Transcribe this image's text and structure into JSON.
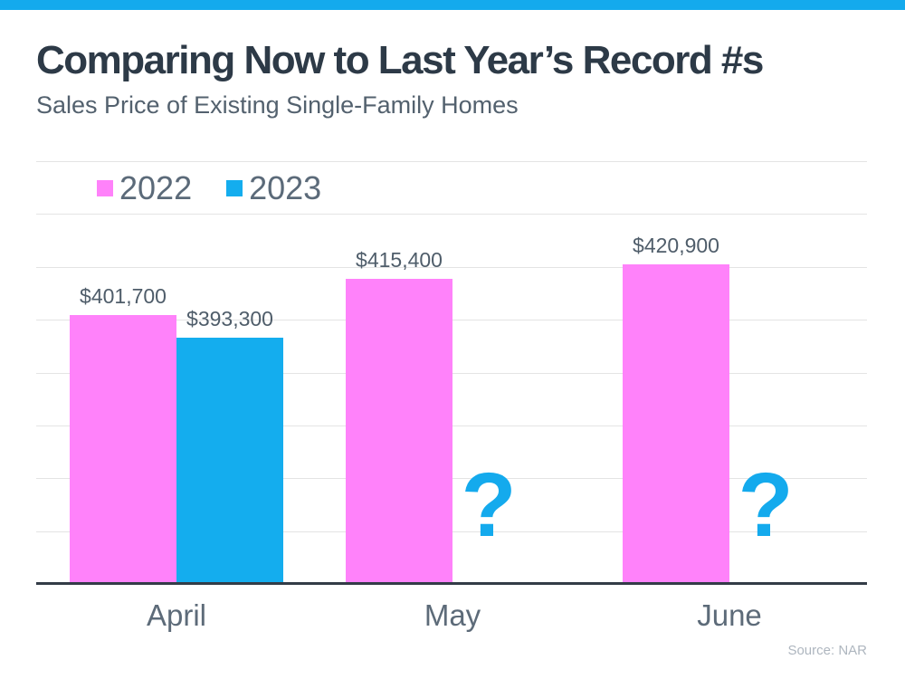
{
  "header": {
    "title": "Comparing Now to Last Year’s Record #s",
    "subtitle": "Sales Price of Existing Single-Family Homes"
  },
  "legend": {
    "items": [
      {
        "label": "2022",
        "color": "#ff82fa"
      },
      {
        "label": "2023",
        "color": "#14adee"
      }
    ]
  },
  "chart_data": {
    "type": "bar",
    "title": "Comparing Now to Last Year’s Record #s",
    "subtitle": "Sales Price of Existing Single-Family Homes",
    "categories": [
      "April",
      "May",
      "June"
    ],
    "series": [
      {
        "name": "2022",
        "color": "#ff82fa",
        "values": [
          401700,
          415400,
          420900
        ],
        "labels": [
          "$401,700",
          "$415,400",
          "$420,900"
        ]
      },
      {
        "name": "2023",
        "color": "#14adee",
        "values": [
          393300,
          null,
          null
        ],
        "labels": [
          "$393,300",
          null,
          null
        ]
      }
    ],
    "missing_marker": "?",
    "ylim": [
      300000,
      460000
    ],
    "gridline_step": 20000,
    "grid": true,
    "legend_position": "top-left",
    "y_axis_labels_shown": false,
    "value_labels_shown": true
  },
  "footer": {
    "source": "Source: NAR"
  },
  "colors": {
    "accent_blue": "#14aaed",
    "pink": "#ff82fa",
    "bar_blue": "#14adee",
    "title_text": "#2d3a47",
    "subtitle_text": "#53616e",
    "label_text": "#4f5d6a",
    "gridline": "#e4e4e4",
    "axis_line": "#333c47",
    "source_text": "#aeb6bf"
  }
}
